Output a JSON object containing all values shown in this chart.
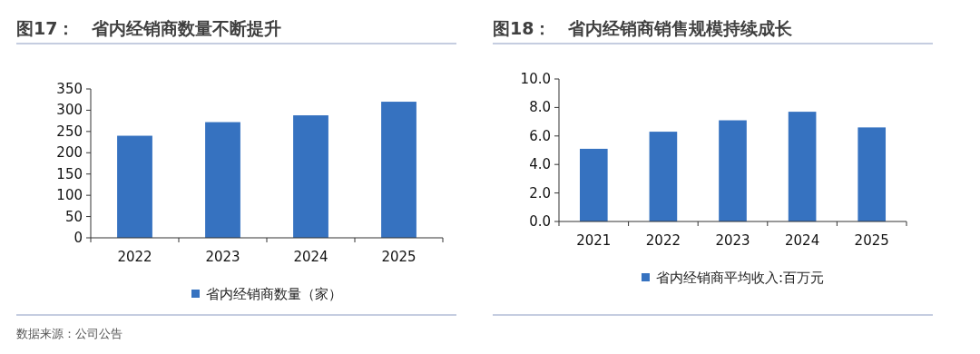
{
  "chart_data": [
    {
      "type": "bar",
      "title": "图17：　省内经销商数量不断提升",
      "categories": [
        "2022",
        "2023",
        "2024",
        "2025"
      ],
      "series": [
        {
          "name": "省内经销商数量（家）",
          "color": "#3672c0",
          "values": [
            240,
            272,
            288,
            320
          ]
        }
      ],
      "ylim": [
        0,
        350
      ],
      "yticks": [
        0,
        50,
        100,
        150,
        200,
        250,
        300,
        350
      ],
      "legend": "bottom",
      "grid": false,
      "annotations": [
        "数据来源：公司公告"
      ]
    },
    {
      "type": "bar",
      "title": "图18：　省内经销商销售规模持续成长",
      "categories": [
        "2021",
        "2022",
        "2023",
        "2024",
        "2025"
      ],
      "series": [
        {
          "name": "省内经销商平均收入:百万元",
          "color": "#3672c0",
          "values": [
            5.1,
            6.3,
            7.1,
            7.7,
            6.6
          ]
        }
      ],
      "ylim": [
        0,
        10
      ],
      "yticks": [
        {
          "value": 0,
          "label": "0.0"
        },
        {
          "value": 2,
          "label": "2.0"
        },
        {
          "value": 4,
          "label": "4.0"
        },
        {
          "value": 6,
          "label": "6.0"
        },
        {
          "value": 8,
          "label": "8.0"
        },
        {
          "value": 10,
          "label": "10.0"
        }
      ],
      "legend": "bottom",
      "grid": false
    }
  ]
}
